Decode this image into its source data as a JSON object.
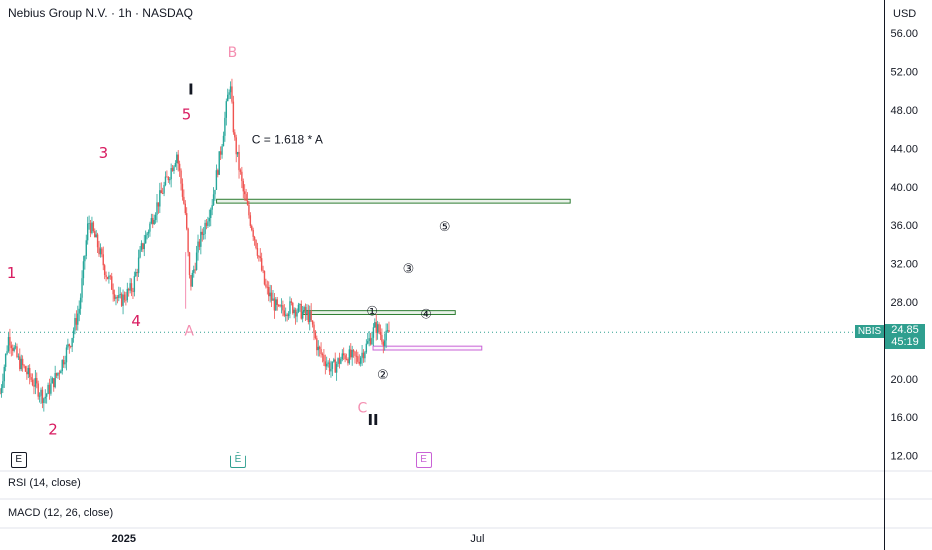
{
  "header": {
    "title": "Nebius Group N.V. · 1h · NASDAQ",
    "currency": "USD"
  },
  "colors": {
    "up": "#26a69a",
    "down": "#ef5350",
    "wave_primary": "#d81b60",
    "wave_correction": "#f48fb1",
    "zone_green": "#2e7d32",
    "zone_pink": "#c962d6",
    "last_price_bg": "#2f9f8f"
  },
  "chart_data": {
    "type": "line",
    "title": "Nebius Group N.V. · 1h · NASDAQ",
    "ylim": [
      10,
      58
    ],
    "yticks": [
      "56.00",
      "52.00",
      "48.00",
      "44.00",
      "40.00",
      "36.00",
      "32.00",
      "28.00",
      "24.00",
      "20.00",
      "16.00",
      "12.00"
    ],
    "xticks": [
      {
        "label": "2025",
        "t": 0.14
      },
      {
        "label": "Jul",
        "t": 0.54
      }
    ],
    "series": [
      {
        "values": [
          {
            "t": 0.0,
            "v": 18.5
          },
          {
            "t": 0.01,
            "v": 24.5
          },
          {
            "t": 0.02,
            "v": 22.0
          },
          {
            "t": 0.035,
            "v": 20.0
          },
          {
            "t": 0.05,
            "v": 18.0
          },
          {
            "t": 0.065,
            "v": 20.5
          },
          {
            "t": 0.08,
            "v": 24.0
          },
          {
            "t": 0.09,
            "v": 27.5
          },
          {
            "t": 0.1,
            "v": 36.5
          },
          {
            "t": 0.11,
            "v": 34.0
          },
          {
            "t": 0.12,
            "v": 31.0
          },
          {
            "t": 0.135,
            "v": 28.0
          },
          {
            "t": 0.15,
            "v": 29.5
          },
          {
            "t": 0.16,
            "v": 33.5
          },
          {
            "t": 0.175,
            "v": 37.5
          },
          {
            "t": 0.19,
            "v": 41.0
          },
          {
            "t": 0.2,
            "v": 43.5
          },
          {
            "t": 0.21,
            "v": 37.0
          },
          {
            "t": 0.215,
            "v": 29.5
          },
          {
            "t": 0.225,
            "v": 34.0
          },
          {
            "t": 0.24,
            "v": 38.5
          },
          {
            "t": 0.25,
            "v": 44.0
          },
          {
            "t": 0.26,
            "v": 51.0
          },
          {
            "t": 0.265,
            "v": 45.0
          },
          {
            "t": 0.275,
            "v": 39.5
          },
          {
            "t": 0.29,
            "v": 34.0
          },
          {
            "t": 0.3,
            "v": 29.5
          },
          {
            "t": 0.315,
            "v": 27.0
          },
          {
            "t": 0.33,
            "v": 27.5
          },
          {
            "t": 0.35,
            "v": 26.5
          },
          {
            "t": 0.36,
            "v": 23.0
          },
          {
            "t": 0.375,
            "v": 21.0
          },
          {
            "t": 0.39,
            "v": 22.5
          },
          {
            "t": 0.405,
            "v": 22.0
          },
          {
            "t": 0.415,
            "v": 23.5
          },
          {
            "t": 0.425,
            "v": 25.5
          },
          {
            "t": 0.435,
            "v": 24.0
          },
          {
            "t": 0.44,
            "v": 24.85
          }
        ]
      }
    ],
    "last_price": {
      "value": "24.85",
      "countdown": "45:19",
      "symbol": "NBIS"
    },
    "wave_labels": [
      {
        "text": "1",
        "t": 0.013,
        "v": 30.5,
        "kind": "primary"
      },
      {
        "text": "2",
        "t": 0.06,
        "v": 14.2,
        "kind": "primary"
      },
      {
        "text": "3",
        "t": 0.117,
        "v": 43.0,
        "kind": "primary"
      },
      {
        "text": "4",
        "t": 0.154,
        "v": 25.5,
        "kind": "primary"
      },
      {
        "text": "5",
        "t": 0.211,
        "v": 47.0,
        "kind": "primary"
      },
      {
        "text": "I",
        "t": 0.216,
        "v": 49.6,
        "kind": "degree"
      },
      {
        "text": "A",
        "t": 0.214,
        "v": 24.5,
        "kind": "correction"
      },
      {
        "text": "B",
        "t": 0.263,
        "v": 53.5,
        "kind": "correction"
      },
      {
        "text": "C",
        "t": 0.41,
        "v": 16.5,
        "kind": "correction"
      },
      {
        "text": "II",
        "t": 0.422,
        "v": 15.2,
        "kind": "degree"
      },
      {
        "text": "①",
        "t": 0.421,
        "v": 26.6,
        "kind": "circle"
      },
      {
        "text": "②",
        "t": 0.433,
        "v": 20.0,
        "kind": "circle"
      },
      {
        "text": "③",
        "t": 0.462,
        "v": 31.0,
        "kind": "circle"
      },
      {
        "text": "④",
        "t": 0.482,
        "v": 26.3,
        "kind": "circle"
      },
      {
        "text": "⑤",
        "t": 0.503,
        "v": 35.4,
        "kind": "circle"
      }
    ],
    "annotation": {
      "text": "C = 1.618 * A",
      "t": 0.325,
      "v": 44.5
    },
    "zones": [
      {
        "name": "upper-target",
        "t1": 0.245,
        "t2": 0.645,
        "v1": 38.7,
        "v2": 38.3,
        "color": "green"
      },
      {
        "name": "wave-1-level",
        "t1": 0.343,
        "t2": 0.515,
        "v1": 27.1,
        "v2": 26.7,
        "color": "green"
      },
      {
        "name": "support",
        "t1": 0.422,
        "t2": 0.545,
        "v1": 23.4,
        "v2": 23.0,
        "color": "pink"
      }
    ]
  },
  "events": [
    {
      "label": "E",
      "kind": "dark",
      "t": 0.02
    },
    {
      "label": "E",
      "kind": "teal",
      "t": 0.268
    },
    {
      "label": "E",
      "kind": "pink",
      "t": 0.478
    }
  ],
  "indicators": {
    "rsi": "RSI (14, close)",
    "macd": "MACD (12, 26, close)"
  }
}
